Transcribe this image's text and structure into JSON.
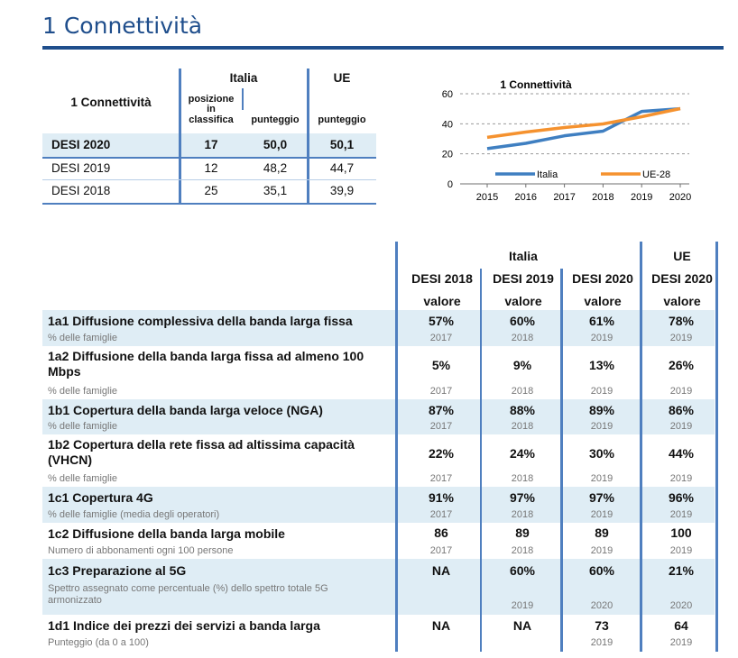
{
  "page": {
    "title": "1 Connettività"
  },
  "summary": {
    "corner_label": "1 Connettività",
    "group_italia": "Italia",
    "group_ue": "UE",
    "col_rank": "posizione in classifica",
    "col_score_it": "punteggio",
    "col_score_ue": "punteggio",
    "rows": [
      {
        "label": "DESI 2020",
        "rank": "17",
        "score_it": "50,0",
        "score_ue": "50,1",
        "bold": true
      },
      {
        "label": "DESI 2019",
        "rank": "12",
        "score_it": "48,2",
        "score_ue": "44,7",
        "bold": false
      },
      {
        "label": "DESI 2018",
        "rank": "25",
        "score_it": "35,1",
        "score_ue": "39,9",
        "bold": false
      }
    ]
  },
  "chart_data": {
    "type": "line",
    "title": "1 Connettività",
    "x": [
      2015,
      2016,
      2017,
      2018,
      2019,
      2020
    ],
    "x_labels": [
      "2015",
      "2016",
      "2017",
      "2018",
      "2019",
      "2020"
    ],
    "ylim": [
      0,
      60
    ],
    "y_ticks": [
      "0",
      "20",
      "40",
      "60"
    ],
    "grid": true,
    "legend_placement": "bottom-inside",
    "series": [
      {
        "name": "Italia",
        "color": "#3f7fc1",
        "values": [
          23.5,
          27,
          32,
          35.1,
          48.2,
          50.0
        ]
      },
      {
        "name": "UE-28",
        "color": "#f5922f",
        "values": [
          31,
          34.5,
          37.5,
          39.9,
          44.7,
          50.1
        ]
      }
    ]
  },
  "indicators": {
    "group_italia": "Italia",
    "group_ue": "UE",
    "columns": [
      {
        "top": "DESI 2018",
        "sub": "valore"
      },
      {
        "top": "DESI 2019",
        "sub": "valore"
      },
      {
        "top": "DESI 2020",
        "sub": "valore"
      },
      {
        "top": "DESI 2020",
        "sub": "valore"
      }
    ],
    "rows": [
      {
        "label": "1a1 Diffusione complessiva della banda larga fissa",
        "sub": "% delle famiglie",
        "values": [
          "57%",
          "60%",
          "61%",
          "78%"
        ],
        "years": [
          "2017",
          "2018",
          "2019",
          "2019"
        ]
      },
      {
        "label": "1a2 Diffusione della banda larga fissa ad almeno 100 Mbps",
        "sub": "% delle famiglie",
        "values": [
          "5%",
          "9%",
          "13%",
          "26%"
        ],
        "years": [
          "2017",
          "2018",
          "2019",
          "2019"
        ]
      },
      {
        "label": "1b1 Copertura della banda larga veloce (NGA)",
        "sub": "% delle famiglie",
        "values": [
          "87%",
          "88%",
          "89%",
          "86%"
        ],
        "years": [
          "2017",
          "2018",
          "2019",
          "2019"
        ]
      },
      {
        "label": "1b2 Copertura della rete fissa ad altissima capacità (VHCN)",
        "sub": "% delle famiglie",
        "values": [
          "22%",
          "24%",
          "30%",
          "44%"
        ],
        "years": [
          "2017",
          "2018",
          "2019",
          "2019"
        ]
      },
      {
        "label": "1c1 Copertura 4G",
        "sub": "% delle famiglie (media degli operatori)",
        "values": [
          "91%",
          "97%",
          "97%",
          "96%"
        ],
        "years": [
          "2017",
          "2018",
          "2019",
          "2019"
        ]
      },
      {
        "label": "1c2 Diffusione della banda larga mobile",
        "sub": "Numero di abbonamenti ogni 100 persone",
        "values": [
          "86",
          "89",
          "89",
          "100"
        ],
        "years": [
          "2017",
          "2018",
          "2019",
          "2019"
        ]
      },
      {
        "label": "1c3 Preparazione al 5G",
        "sub": "Spettro assegnato come percentuale (%) dello spettro totale 5G armonizzato",
        "values": [
          "NA",
          "60%",
          "60%",
          "21%"
        ],
        "years": [
          "",
          "2019",
          "2020",
          "2020"
        ]
      },
      {
        "label": "1d1 Indice dei prezzi dei servizi a banda larga",
        "sub": "Punteggio (da 0 a 100)",
        "values": [
          "NA",
          "NA",
          "73",
          "64"
        ],
        "years": [
          "",
          "",
          "2019",
          "2019"
        ]
      }
    ]
  }
}
